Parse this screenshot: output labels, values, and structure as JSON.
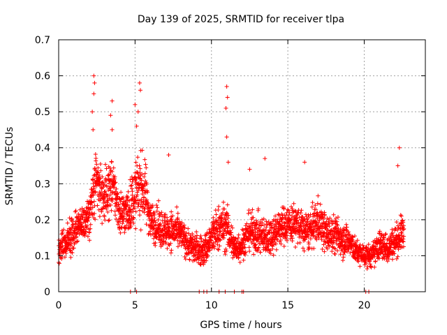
{
  "chart_data": {
    "type": "scatter",
    "title": "Day 139 of 2025, SRMTID for receiver tlpa",
    "xlabel": "GPS time / hours",
    "ylabel": "SRMTID / TECUs",
    "xlim": [
      0,
      24
    ],
    "ylim": [
      0,
      0.7
    ],
    "x_ticks": [
      0,
      5,
      10,
      15,
      20
    ],
    "x_tick_labels": [
      "0",
      "5",
      "10",
      "15",
      "20"
    ],
    "y_ticks": [
      0,
      0.1,
      0.2,
      0.3,
      0.4,
      0.5,
      0.6,
      0.7
    ],
    "y_tick_labels": [
      "0",
      "0.1",
      "0.2",
      "0.3",
      "0.4",
      "0.5",
      "0.6",
      "0.7"
    ],
    "grid": true,
    "marker": "plus",
    "color": "#ff0000",
    "series": [
      {
        "name": "SRMTID",
        "envelope_x": [
          0,
          0.5,
          1.0,
          1.5,
          2.0,
          2.3,
          2.5,
          3.0,
          3.5,
          4.0,
          4.5,
          5.0,
          5.3,
          5.7,
          6.0,
          6.5,
          7.0,
          7.5,
          8.0,
          8.5,
          9.0,
          9.5,
          10.0,
          10.5,
          11.0,
          11.5,
          12.0,
          12.5,
          13.0,
          13.5,
          14.0,
          14.5,
          15.0,
          15.5,
          16.0,
          16.5,
          17.0,
          17.5,
          18.0,
          18.5,
          19.0,
          19.5,
          20.0,
          20.5,
          21.0,
          21.5,
          22.0,
          22.6
        ],
        "envelope_mean": [
          0.12,
          0.13,
          0.17,
          0.19,
          0.21,
          0.27,
          0.3,
          0.26,
          0.3,
          0.22,
          0.22,
          0.27,
          0.3,
          0.27,
          0.2,
          0.18,
          0.17,
          0.17,
          0.16,
          0.13,
          0.12,
          0.11,
          0.15,
          0.18,
          0.18,
          0.12,
          0.13,
          0.17,
          0.16,
          0.15,
          0.16,
          0.18,
          0.19,
          0.19,
          0.17,
          0.17,
          0.2,
          0.16,
          0.16,
          0.15,
          0.14,
          0.11,
          0.1,
          0.1,
          0.13,
          0.12,
          0.14,
          0.17
        ],
        "envelope_spread": [
          0.04,
          0.04,
          0.05,
          0.05,
          0.06,
          0.09,
          0.08,
          0.07,
          0.07,
          0.06,
          0.06,
          0.08,
          0.09,
          0.08,
          0.05,
          0.05,
          0.05,
          0.05,
          0.04,
          0.04,
          0.04,
          0.04,
          0.05,
          0.06,
          0.06,
          0.04,
          0.04,
          0.05,
          0.05,
          0.05,
          0.05,
          0.05,
          0.05,
          0.05,
          0.05,
          0.05,
          0.06,
          0.05,
          0.05,
          0.05,
          0.04,
          0.03,
          0.03,
          0.03,
          0.04,
          0.04,
          0.04,
          0.05
        ],
        "spikes": [
          {
            "x": 2.3,
            "y": 0.6
          },
          {
            "x": 2.35,
            "y": 0.58
          },
          {
            "x": 2.3,
            "y": 0.55
          },
          {
            "x": 2.2,
            "y": 0.5
          },
          {
            "x": 2.25,
            "y": 0.45
          },
          {
            "x": 3.5,
            "y": 0.53
          },
          {
            "x": 3.4,
            "y": 0.49
          },
          {
            "x": 3.5,
            "y": 0.45
          },
          {
            "x": 5.0,
            "y": 0.52
          },
          {
            "x": 5.3,
            "y": 0.58
          },
          {
            "x": 5.35,
            "y": 0.56
          },
          {
            "x": 5.2,
            "y": 0.5
          },
          {
            "x": 5.1,
            "y": 0.46
          },
          {
            "x": 11.0,
            "y": 0.57
          },
          {
            "x": 11.05,
            "y": 0.54
          },
          {
            "x": 10.95,
            "y": 0.51
          },
          {
            "x": 11.0,
            "y": 0.43
          },
          {
            "x": 11.1,
            "y": 0.36
          },
          {
            "x": 22.3,
            "y": 0.4
          },
          {
            "x": 22.2,
            "y": 0.35
          },
          {
            "x": 13.5,
            "y": 0.37
          },
          {
            "x": 16.1,
            "y": 0.36
          },
          {
            "x": 7.2,
            "y": 0.38
          },
          {
            "x": 12.5,
            "y": 0.34
          }
        ],
        "zero_values_x": [
          4.7,
          5.1,
          9.2,
          9.5,
          9.7,
          10.5,
          10.9,
          11.5,
          12.0,
          12.1,
          20.1,
          20.3
        ]
      }
    ]
  }
}
